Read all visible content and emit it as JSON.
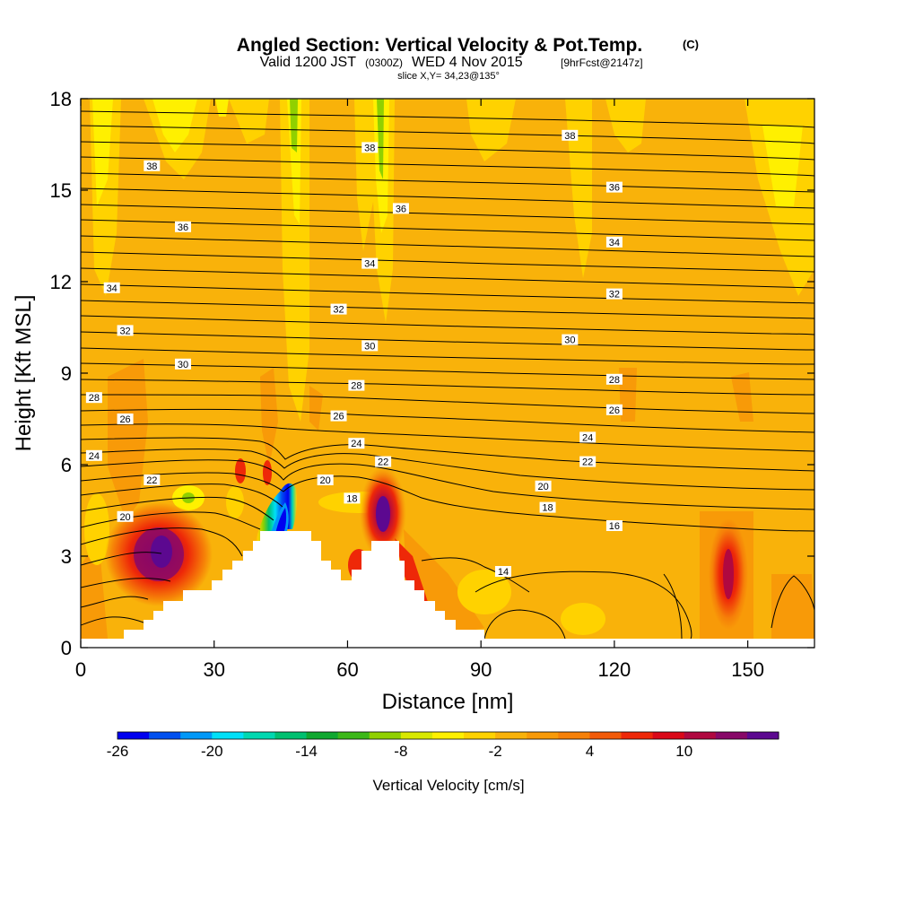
{
  "title": {
    "main": "Angled Section: Vertical Velocity & Pot.Temp.",
    "units_mark": "(C)",
    "valid": "Valid 1200 JST",
    "zulu": "(0300Z)",
    "date": "WED 4 Nov 2015",
    "fcst": "[9hrFcst@2147z]",
    "slice": "slice X,Y= 34,23@135°"
  },
  "colors": {
    "background_field": "#F9B20A",
    "contour_line": "#000000",
    "terrain": "#ffffff"
  },
  "chart_data": {
    "type": "contour",
    "xlabel": "Distance [nm]",
    "ylabel": "Height [Kft MSL]",
    "xlim": [
      0,
      165
    ],
    "ylim": [
      0,
      18
    ],
    "xticks": [
      0,
      30,
      60,
      90,
      120,
      150
    ],
    "yticks": [
      0,
      3,
      6,
      9,
      12,
      15,
      18
    ],
    "field_name": "Vertical Velocity [cm/s]",
    "colorbar": {
      "title": "Vertical Velocity [cm/s]",
      "tick_labels": [
        "-26",
        "-20",
        "-14",
        "-8",
        "-2",
        "4",
        "10"
      ],
      "tick_positions": [
        -26,
        -20,
        -14,
        -8,
        -2,
        4,
        10
      ],
      "min": -26,
      "step": 2,
      "colors": [
        "#0000F0",
        "#0050F0",
        "#0098F8",
        "#00E0F8",
        "#00D8B0",
        "#00C070",
        "#10A830",
        "#3CB818",
        "#90D000",
        "#D8E800",
        "#FFF000",
        "#FFD200",
        "#F9B20A",
        "#F89A08",
        "#F68008",
        "#F25A08",
        "#EE2808",
        "#DA0818",
        "#B00840",
        "#880868",
        "#5C0890"
      ]
    },
    "contours": [
      {
        "level": 14,
        "x": 95,
        "y": 2.5
      },
      {
        "level": 16,
        "x": 120,
        "y": 4.0
      },
      {
        "level": 18,
        "x": 61,
        "y": 4.9
      },
      {
        "level": 18,
        "x": 105,
        "y": 4.6
      },
      {
        "level": 20,
        "x": 10,
        "y": 4.3
      },
      {
        "level": 20,
        "x": 55,
        "y": 5.5
      },
      {
        "level": 20,
        "x": 104,
        "y": 5.3
      },
      {
        "level": 22,
        "x": 16,
        "y": 5.5
      },
      {
        "level": 22,
        "x": 68,
        "y": 6.1
      },
      {
        "level": 22,
        "x": 114,
        "y": 6.1
      },
      {
        "level": 24,
        "x": 3,
        "y": 6.3
      },
      {
        "level": 24,
        "x": 62,
        "y": 6.7
      },
      {
        "level": 24,
        "x": 114,
        "y": 6.9
      },
      {
        "level": 26,
        "x": 10,
        "y": 7.5
      },
      {
        "level": 26,
        "x": 58,
        "y": 7.6
      },
      {
        "level": 26,
        "x": 120,
        "y": 7.8
      },
      {
        "level": 28,
        "x": 3,
        "y": 8.2
      },
      {
        "level": 28,
        "x": 62,
        "y": 8.6
      },
      {
        "level": 28,
        "x": 120,
        "y": 8.8
      },
      {
        "level": 30,
        "x": 23,
        "y": 9.3
      },
      {
        "level": 30,
        "x": 65,
        "y": 9.9
      },
      {
        "level": 30,
        "x": 110,
        "y": 10.1
      },
      {
        "level": 32,
        "x": 10,
        "y": 10.4
      },
      {
        "level": 32,
        "x": 58,
        "y": 11.1
      },
      {
        "level": 32,
        "x": 120,
        "y": 11.6
      },
      {
        "level": 34,
        "x": 7,
        "y": 11.8
      },
      {
        "level": 34,
        "x": 65,
        "y": 12.6
      },
      {
        "level": 34,
        "x": 120,
        "y": 13.3
      },
      {
        "level": 36,
        "x": 23,
        "y": 13.8
      },
      {
        "level": 36,
        "x": 72,
        "y": 14.4
      },
      {
        "level": 36,
        "x": 120,
        "y": 15.1
      },
      {
        "level": 38,
        "x": 16,
        "y": 15.8
      },
      {
        "level": 38,
        "x": 65,
        "y": 16.4
      },
      {
        "level": 38,
        "x": 110,
        "y": 16.8
      }
    ],
    "isotherm_levels": [
      14,
      16,
      18,
      20,
      22,
      24,
      26,
      28,
      30,
      32,
      34,
      36,
      38
    ],
    "features": [
      {
        "name": "updraft",
        "x": 18,
        "y": 3.2,
        "value": 12
      },
      {
        "name": "downdraft",
        "x": 45,
        "y": 4.2,
        "value": -26
      },
      {
        "name": "updraft",
        "x": 68,
        "y": 4.5,
        "value": 12
      },
      {
        "name": "updraft",
        "x": 146,
        "y": 2.5,
        "value": 8
      }
    ]
  }
}
